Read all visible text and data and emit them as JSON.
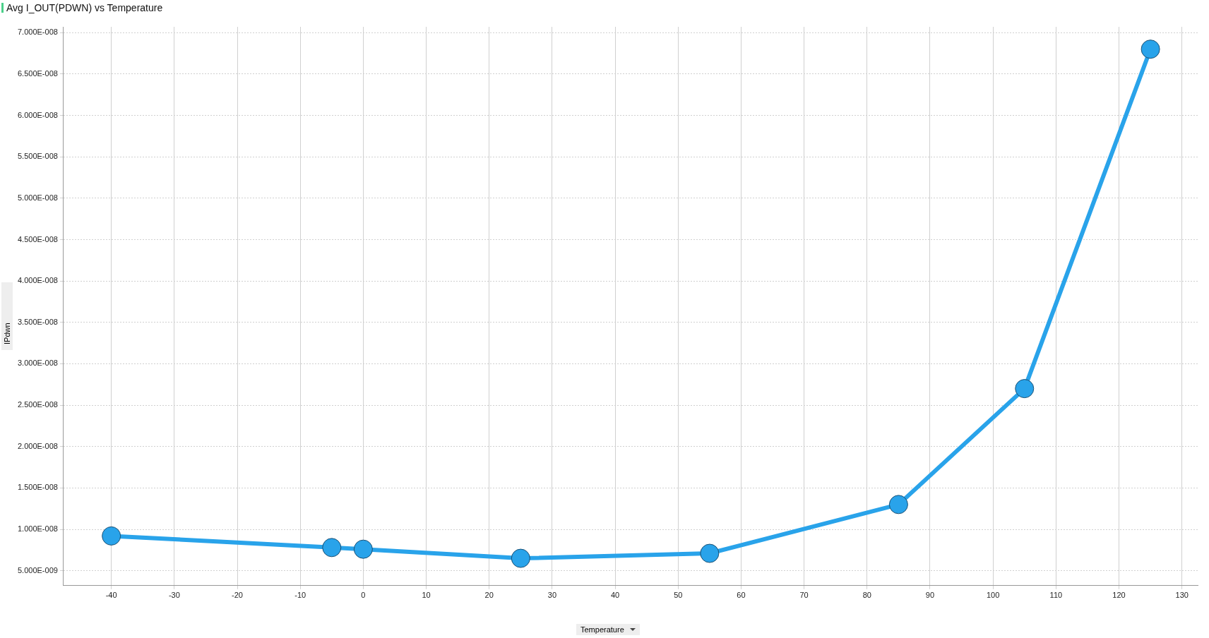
{
  "chart_data": {
    "type": "line",
    "title": "Avg I_OUT(PDWN) vs Temperature",
    "xlabel": "Temperature",
    "ylabel": "IPdwn",
    "x": [
      -40,
      -5,
      0,
      25,
      55,
      85,
      105,
      125
    ],
    "series": [
      {
        "color": "#29a3ea",
        "values": [
          9.2e-09,
          7.8e-09,
          7.6e-09,
          6.5e-09,
          7.1e-09,
          1.3e-08,
          2.7e-08,
          6.8e-08
        ]
      }
    ],
    "xlim": [
      -47.6,
      132.5
    ],
    "xticks": [
      -40,
      -30,
      -20,
      -10,
      0,
      10,
      20,
      30,
      40,
      50,
      60,
      70,
      80,
      90,
      100,
      110,
      120,
      130
    ],
    "ylim": [
      3.2e-09,
      7.07e-08
    ],
    "yticks": [
      {
        "value": 5e-09,
        "label": "5.000E-009"
      },
      {
        "value": 1e-08,
        "label": "1.000E-008"
      },
      {
        "value": 1.5e-08,
        "label": "1.500E-008"
      },
      {
        "value": 2e-08,
        "label": "2.000E-008"
      },
      {
        "value": 2.5e-08,
        "label": "2.500E-008"
      },
      {
        "value": 3e-08,
        "label": "3.000E-008"
      },
      {
        "value": 3.5e-08,
        "label": "3.500E-008"
      },
      {
        "value": 4e-08,
        "label": "4.000E-008"
      },
      {
        "value": 4.5e-08,
        "label": "4.500E-008"
      },
      {
        "value": 5e-08,
        "label": "5.000E-008"
      },
      {
        "value": 5.5e-08,
        "label": "5.500E-008"
      },
      {
        "value": 6e-08,
        "label": "6.000E-008"
      },
      {
        "value": 6.5e-08,
        "label": "6.500E-008"
      },
      {
        "value": 7e-08,
        "label": "7.000E-008"
      }
    ],
    "grid": true,
    "legend": false,
    "marker": "circle",
    "line_style": "solid"
  }
}
